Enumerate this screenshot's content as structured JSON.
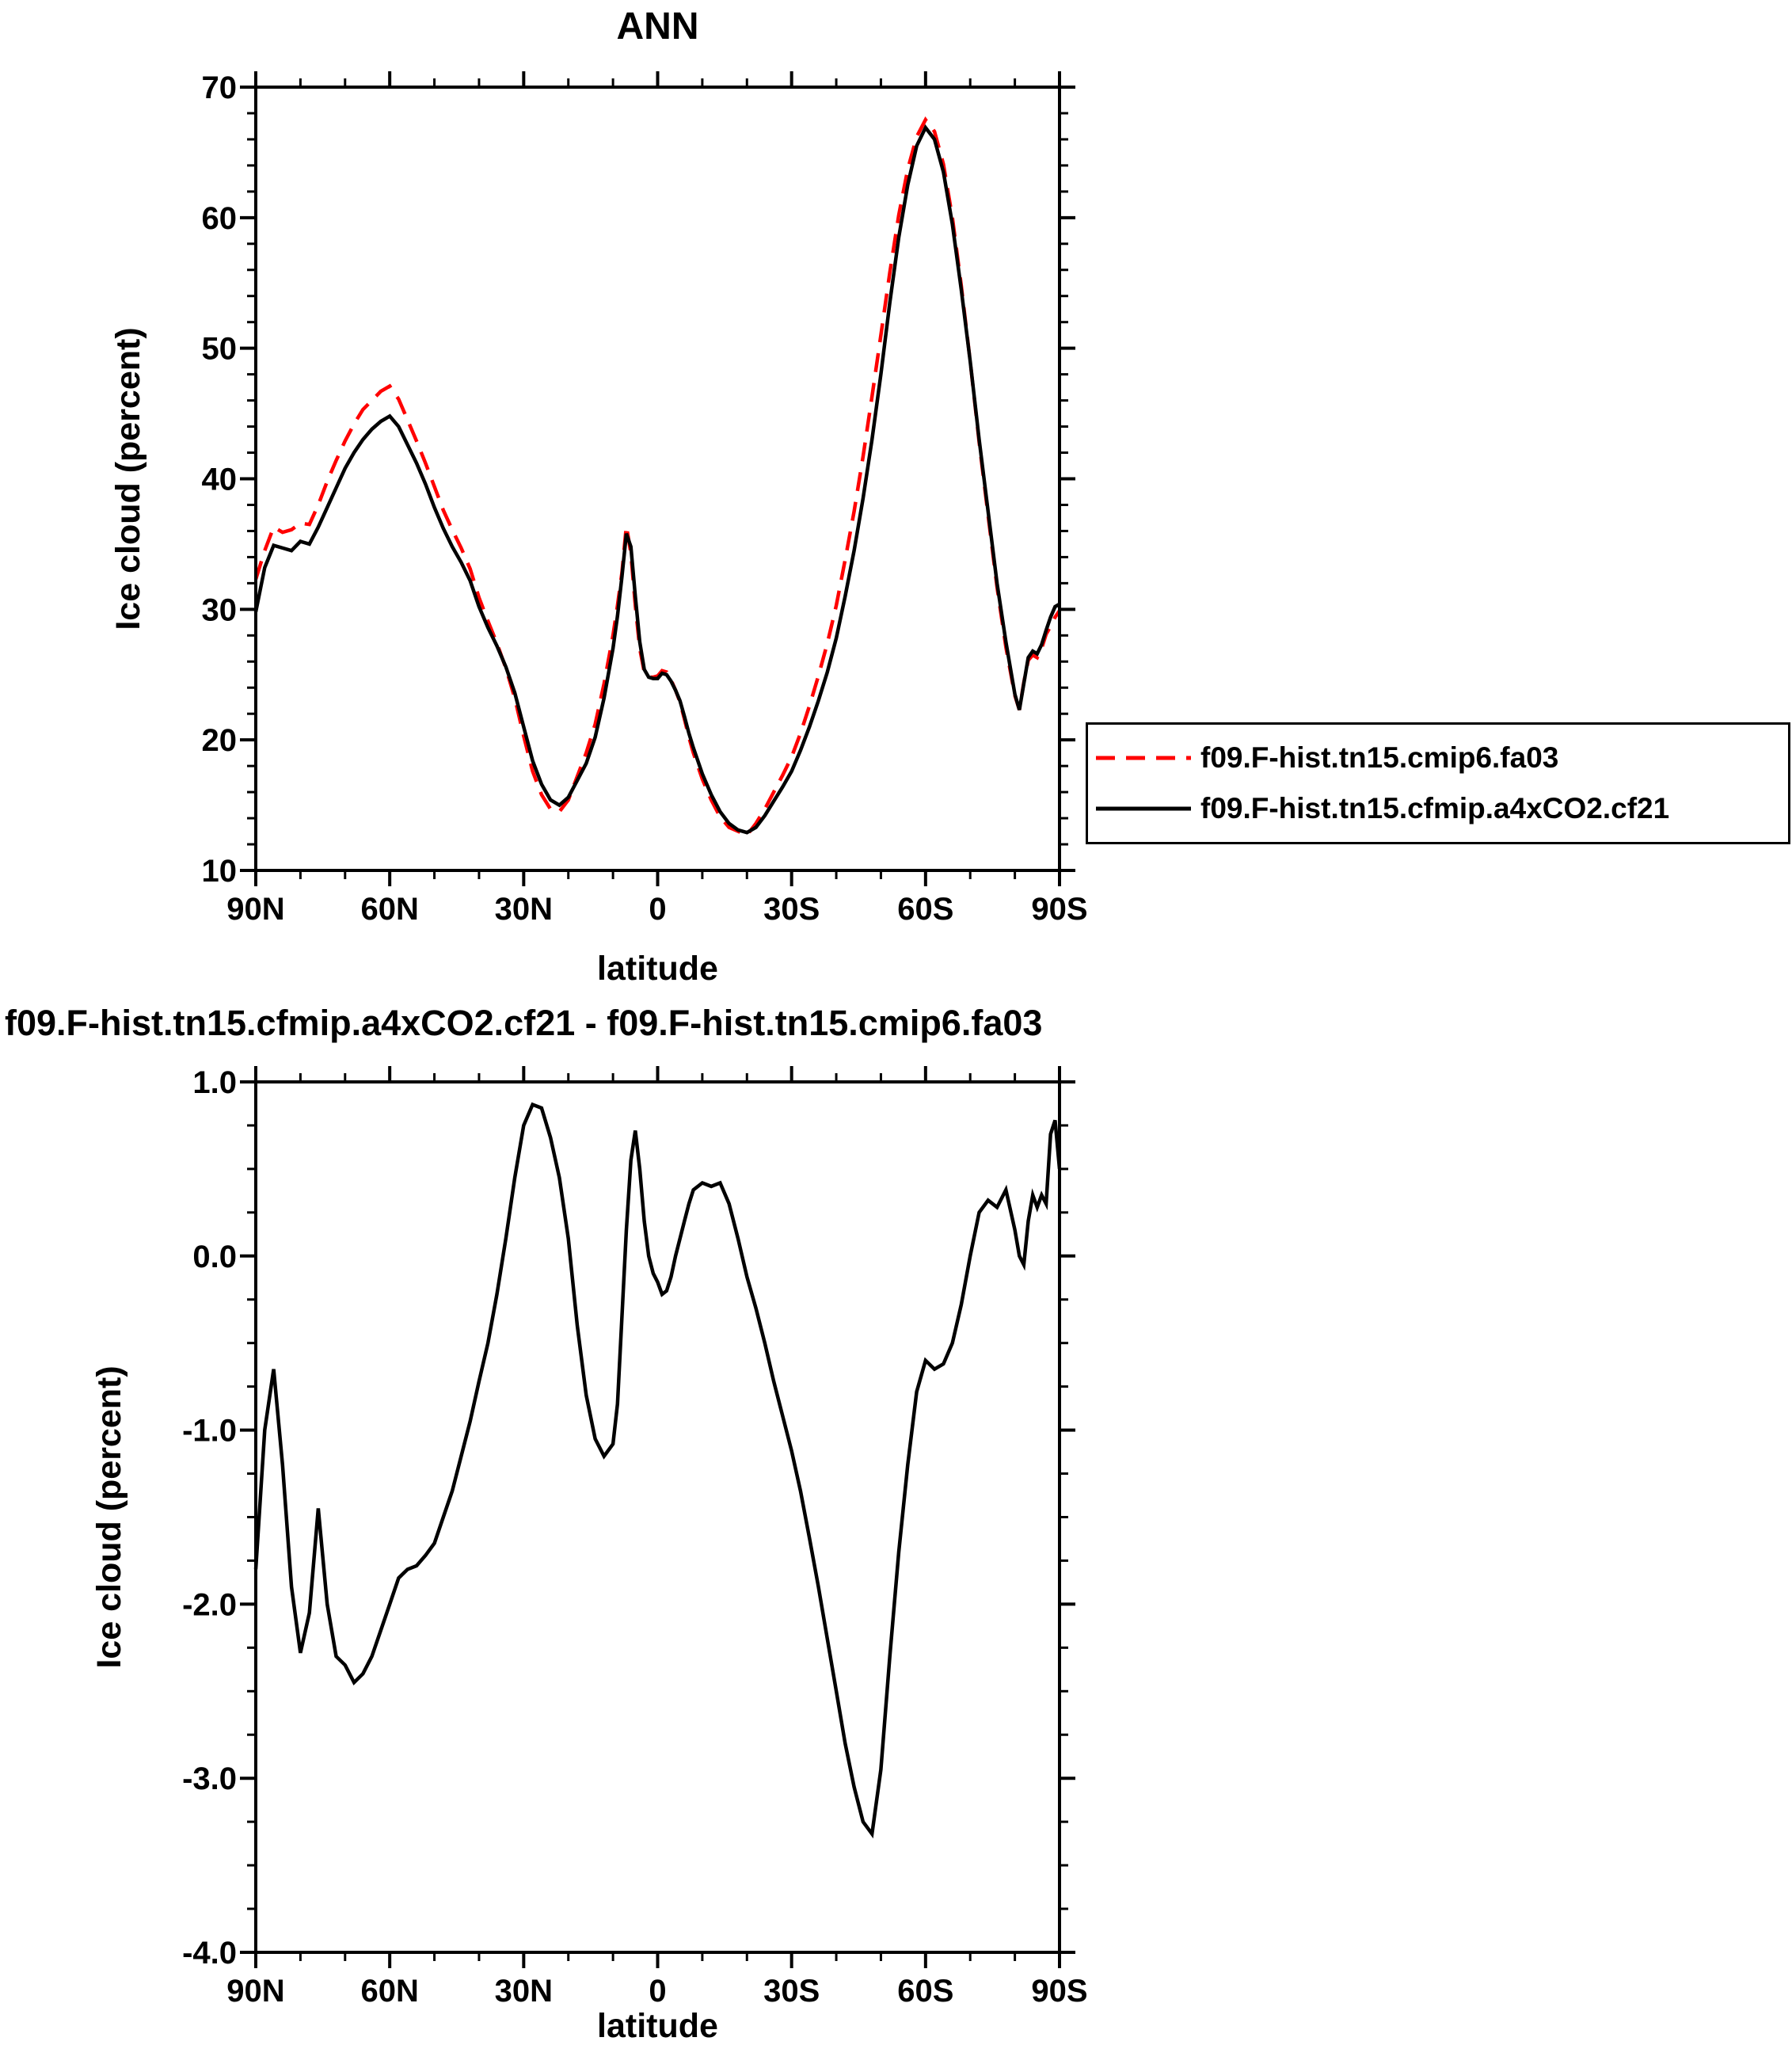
{
  "chart_data": [
    {
      "type": "line",
      "title": "ANN",
      "xlabel": "latitude",
      "ylabel": "Ice cloud (percent)",
      "xlim": [
        90,
        -90
      ],
      "ylim": [
        10,
        70
      ],
      "xticks": [
        90,
        60,
        30,
        0,
        -30,
        -60,
        -90
      ],
      "xtick_labels": [
        "90N",
        "60N",
        "30N",
        "0",
        "30S",
        "60S",
        "90S"
      ],
      "xminor_step": 10,
      "yticks": [
        10,
        20,
        30,
        40,
        50,
        60,
        70
      ],
      "ytick_labels": [
        "10",
        "20",
        "30",
        "40",
        "50",
        "60",
        "70"
      ],
      "yminor_step": 2,
      "grid": false,
      "legend_position": "outside-right",
      "lat": [
        90,
        88,
        86,
        84,
        82,
        80,
        78,
        76,
        74,
        72,
        70,
        68,
        66,
        64,
        62,
        60,
        58,
        56,
        54,
        52,
        50,
        48,
        46,
        44,
        42,
        40,
        38,
        36,
        34,
        32,
        30,
        28,
        26,
        24,
        22,
        20,
        18,
        16,
        14,
        12,
        10,
        9,
        8,
        7,
        6,
        5,
        4,
        3,
        2,
        1,
        0,
        -1,
        -2,
        -3,
        -4,
        -5,
        -6,
        -7,
        -8,
        -10,
        -12,
        -14,
        -16,
        -18,
        -20,
        -22,
        -24,
        -26,
        -28,
        -30,
        -32,
        -34,
        -36,
        -38,
        -40,
        -42,
        -44,
        -46,
        -48,
        -50,
        -52,
        -54,
        -56,
        -58,
        -60,
        -62,
        -64,
        -66,
        -68,
        -70,
        -72,
        -74,
        -76,
        -78,
        -80,
        -81,
        -82,
        -83,
        -84,
        -85,
        -86,
        -87,
        -88,
        -89,
        -90
      ],
      "series": [
        {
          "name": "f09.F-hist.tn15.cmip6.fa03",
          "color": "#ff0000",
          "style": "dashed",
          "values": [
            32.3,
            34.5,
            36.3,
            35.9,
            36.1,
            36.6,
            36.5,
            38.0,
            39.8,
            41.4,
            42.9,
            44.2,
            45.3,
            46.0,
            46.7,
            47.1,
            46.1,
            44.5,
            42.9,
            41.2,
            39.4,
            37.6,
            36.1,
            34.7,
            33.1,
            30.9,
            29.1,
            27.4,
            25.5,
            23.2,
            20.3,
            17.6,
            15.8,
            14.7,
            14.5,
            15.4,
            17.2,
            19.0,
            21.2,
            24.3,
            28.0,
            30.3,
            32.8,
            36.4,
            34.3,
            30.3,
            27.0,
            25.2,
            24.8,
            24.8,
            24.9,
            25.3,
            25.2,
            24.6,
            23.8,
            22.9,
            21.6,
            20.2,
            19.0,
            17.0,
            15.4,
            14.1,
            13.3,
            13.0,
            12.7,
            13.6,
            14.7,
            16.0,
            17.3,
            18.7,
            20.5,
            22.6,
            24.9,
            27.4,
            30.3,
            33.8,
            37.5,
            41.7,
            46.3,
            51.0,
            55.8,
            60.2,
            63.7,
            66.2,
            67.5,
            66.6,
            64.1,
            60.0,
            54.8,
            49.0,
            42.8,
            37.2,
            31.7,
            27.1,
            23.4,
            22.3,
            24.4,
            26.1,
            26.5,
            26.3,
            27.0,
            28.1,
            28.7,
            29.4,
            29.9
          ]
        },
        {
          "name": "f09.F-hist.tn15.cfmip.a4xCO2.cf21",
          "color": "#000000",
          "style": "solid",
          "values": [
            29.8,
            33.2,
            34.9,
            34.7,
            34.5,
            35.2,
            35.0,
            36.3,
            37.8,
            39.3,
            40.8,
            42.0,
            43.0,
            43.8,
            44.4,
            44.8,
            44.0,
            42.6,
            41.2,
            39.6,
            37.8,
            36.2,
            34.8,
            33.6,
            32.2,
            30.2,
            28.6,
            27.2,
            25.6,
            23.6,
            21.0,
            18.4,
            16.6,
            15.4,
            15.0,
            15.6,
            16.9,
            18.2,
            20.2,
            23.2,
            27.0,
            29.5,
            32.5,
            35.8,
            34.8,
            31.0,
            27.5,
            25.4,
            24.8,
            24.7,
            24.7,
            25.1,
            25.0,
            24.5,
            23.8,
            23.0,
            21.8,
            20.5,
            19.4,
            17.4,
            15.8,
            14.5,
            13.6,
            13.1,
            12.9,
            13.3,
            14.2,
            15.3,
            16.4,
            17.6,
            19.2,
            21.0,
            23.0,
            25.2,
            27.8,
            31.0,
            34.5,
            38.5,
            43.0,
            48.0,
            53.5,
            58.5,
            62.5,
            65.5,
            66.9,
            66.0,
            63.5,
            59.5,
            54.5,
            49.0,
            43.0,
            37.5,
            32.0,
            27.5,
            23.5,
            22.3,
            24.3,
            26.3,
            26.8,
            26.6,
            27.3,
            28.4,
            29.4,
            30.2,
            30.4
          ]
        }
      ]
    },
    {
      "type": "line",
      "title": "f09.F-hist.tn15.cfmip.a4xCO2.cf21 - f09.F-hist.tn15.cmip6.fa03",
      "xlabel": "latitude",
      "ylabel": "Ice cloud (percent)",
      "xlim": [
        90,
        -90
      ],
      "ylim": [
        -4,
        1
      ],
      "xticks": [
        90,
        60,
        30,
        0,
        -30,
        -60,
        -90
      ],
      "xtick_labels": [
        "90N",
        "60N",
        "30N",
        "0",
        "30S",
        "60S",
        "90S"
      ],
      "xminor_step": 10,
      "yticks": [
        -4,
        -3,
        -2,
        -1,
        0,
        1
      ],
      "ytick_labels": [
        "-4.0",
        "-3.0",
        "-2.0",
        "-1.0",
        "0.0",
        "1.0"
      ],
      "yminor_step": 0.25,
      "grid": false,
      "lat": [
        90,
        88,
        86,
        84,
        82,
        80,
        78,
        76,
        74,
        72,
        70,
        68,
        66,
        64,
        62,
        60,
        58,
        56,
        54,
        52,
        50,
        48,
        46,
        44,
        42,
        40,
        38,
        36,
        34,
        32,
        30,
        28,
        26,
        24,
        22,
        20,
        18,
        16,
        14,
        12,
        10,
        9,
        8,
        7,
        6,
        5,
        4,
        3,
        2,
        1,
        0,
        -1,
        -2,
        -3,
        -4,
        -5,
        -6,
        -7,
        -8,
        -10,
        -12,
        -14,
        -16,
        -18,
        -20,
        -22,
        -24,
        -26,
        -28,
        -30,
        -32,
        -34,
        -36,
        -38,
        -40,
        -42,
        -44,
        -46,
        -48,
        -50,
        -52,
        -54,
        -56,
        -58,
        -60,
        -62,
        -64,
        -66,
        -68,
        -70,
        -72,
        -74,
        -76,
        -78,
        -80,
        -81,
        -82,
        -83,
        -84,
        -85,
        -86,
        -87,
        -88,
        -89,
        -90
      ],
      "series": [
        {
          "name": "f09.F-hist.tn15.cfmip.a4xCO2.cf21 - f09.F-hist.tn15.cmip6.fa03",
          "color": "#000000",
          "style": "solid",
          "values": [
            -1.8,
            -1.0,
            -0.65,
            -1.2,
            -1.9,
            -2.28,
            -2.05,
            -1.45,
            -2.0,
            -2.3,
            -2.35,
            -2.45,
            -2.4,
            -2.3,
            -2.15,
            -2.0,
            -1.85,
            -1.8,
            -1.78,
            -1.72,
            -1.65,
            -1.5,
            -1.35,
            -1.15,
            -0.95,
            -0.72,
            -0.5,
            -0.22,
            0.1,
            0.45,
            0.75,
            0.87,
            0.85,
            0.68,
            0.45,
            0.1,
            -0.4,
            -0.8,
            -1.05,
            -1.15,
            -1.08,
            -0.85,
            -0.35,
            0.15,
            0.55,
            0.72,
            0.5,
            0.2,
            0.0,
            -0.1,
            -0.15,
            -0.22,
            -0.2,
            -0.12,
            0.0,
            0.1,
            0.2,
            0.3,
            0.38,
            0.42,
            0.4,
            0.42,
            0.3,
            0.1,
            -0.12,
            -0.3,
            -0.5,
            -0.72,
            -0.92,
            -1.12,
            -1.35,
            -1.62,
            -1.9,
            -2.2,
            -2.5,
            -2.8,
            -3.05,
            -3.25,
            -3.32,
            -2.95,
            -2.3,
            -1.7,
            -1.2,
            -0.78,
            -0.6,
            -0.65,
            -0.62,
            -0.5,
            -0.28,
            0.0,
            0.25,
            0.32,
            0.28,
            0.38,
            0.15,
            0.0,
            -0.05,
            0.2,
            0.35,
            0.28,
            0.35,
            0.3,
            0.7,
            0.78,
            0.5
          ]
        }
      ]
    }
  ]
}
